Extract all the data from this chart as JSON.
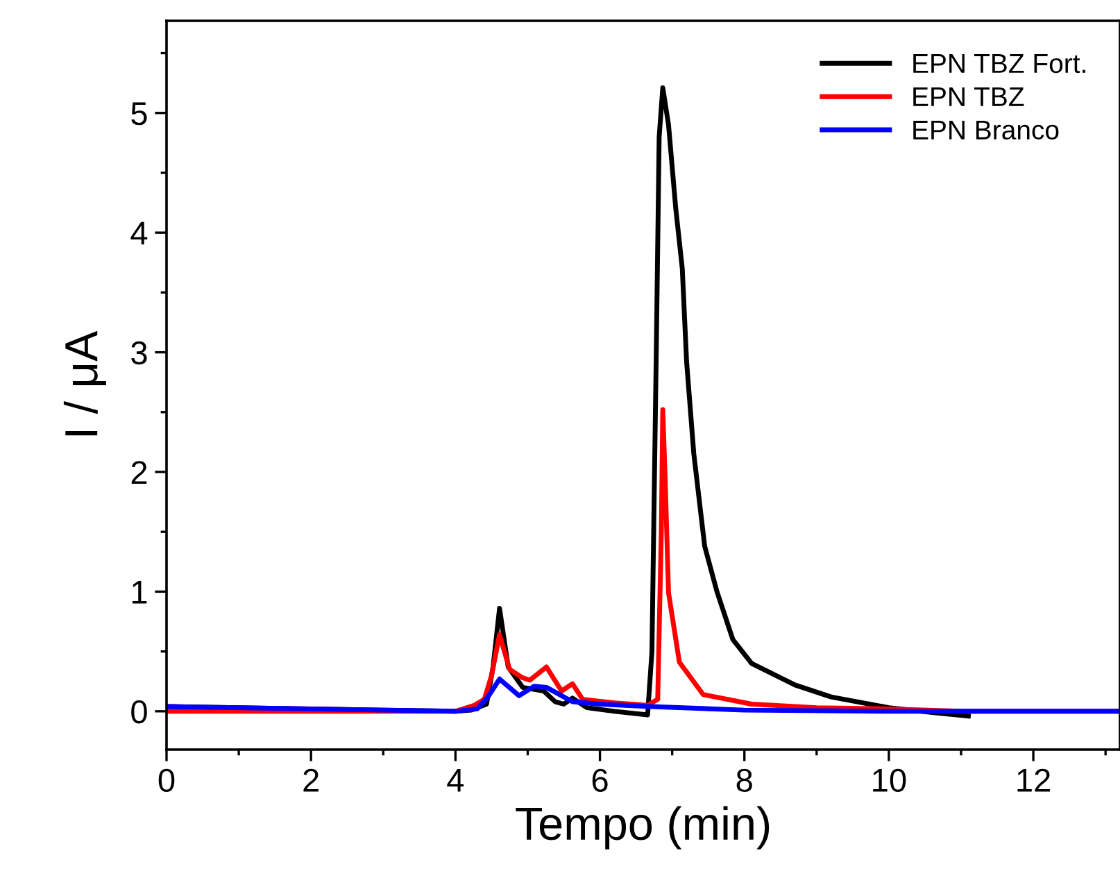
{
  "chart_data": {
    "type": "line",
    "xlabel": "Tempo (min)",
    "ylabel": "I / μA",
    "xlim": [
      0,
      13.2
    ],
    "ylim": [
      -0.32,
      5.77
    ],
    "xticks": [
      0,
      2,
      4,
      6,
      8,
      10,
      12
    ],
    "yticks": [
      0,
      1,
      2,
      3,
      4,
      5
    ],
    "grid": false,
    "legend": "top right",
    "line_style": "solid",
    "marker": "none",
    "series": [
      {
        "name": "EPN TBZ Fort.",
        "color": "#000000",
        "x": [
          0,
          1,
          2,
          3,
          4,
          4.22,
          4.43,
          4.52,
          4.61,
          4.73,
          4.93,
          5.22,
          5.38,
          5.5,
          5.62,
          5.82,
          6.2,
          6.66,
          6.72,
          6.78,
          6.82,
          6.87,
          6.95,
          7.05,
          7.14,
          7.2,
          7.3,
          7.45,
          7.62,
          7.84,
          8.1,
          8.7,
          9.2,
          10,
          10.6,
          11.1
        ],
        "values": [
          0.04,
          0.03,
          0.02,
          0.01,
          0.0,
          0.01,
          0.06,
          0.37,
          0.86,
          0.37,
          0.2,
          0.17,
          0.08,
          0.06,
          0.11,
          0.03,
          0.0,
          -0.03,
          0.5,
          3.0,
          4.8,
          5.21,
          4.9,
          4.2,
          3.7,
          2.92,
          2.15,
          1.38,
          1.0,
          0.6,
          0.4,
          0.22,
          0.12,
          0.03,
          -0.01,
          -0.04
        ]
      },
      {
        "name": "EPN TBZ",
        "color": "#ff0000",
        "x": [
          0,
          2,
          4,
          4.26,
          4.4,
          4.5,
          4.61,
          4.75,
          4.93,
          5.03,
          5.26,
          5.47,
          5.62,
          5.76,
          6.2,
          6.66,
          6.8,
          6.85,
          6.87,
          6.9,
          6.95,
          7.1,
          7.43,
          8.1,
          9,
          10,
          11,
          13.2
        ],
        "values": [
          0.0,
          0.0,
          0.0,
          0.05,
          0.1,
          0.3,
          0.64,
          0.35,
          0.28,
          0.26,
          0.37,
          0.17,
          0.23,
          0.1,
          0.07,
          0.05,
          0.1,
          1.5,
          2.52,
          2.0,
          0.99,
          0.41,
          0.14,
          0.06,
          0.03,
          0.02,
          0.0,
          0.0
        ]
      },
      {
        "name": "EPN Branco",
        "color": "#0000ff",
        "x": [
          0,
          2,
          4,
          4.3,
          4.45,
          4.61,
          4.88,
          5.09,
          5.26,
          5.62,
          6.0,
          6.7,
          8,
          10,
          13.2
        ],
        "values": [
          0.04,
          0.02,
          0.0,
          0.02,
          0.12,
          0.27,
          0.13,
          0.21,
          0.2,
          0.08,
          0.06,
          0.04,
          0.01,
          0.0,
          0.0
        ]
      }
    ]
  }
}
